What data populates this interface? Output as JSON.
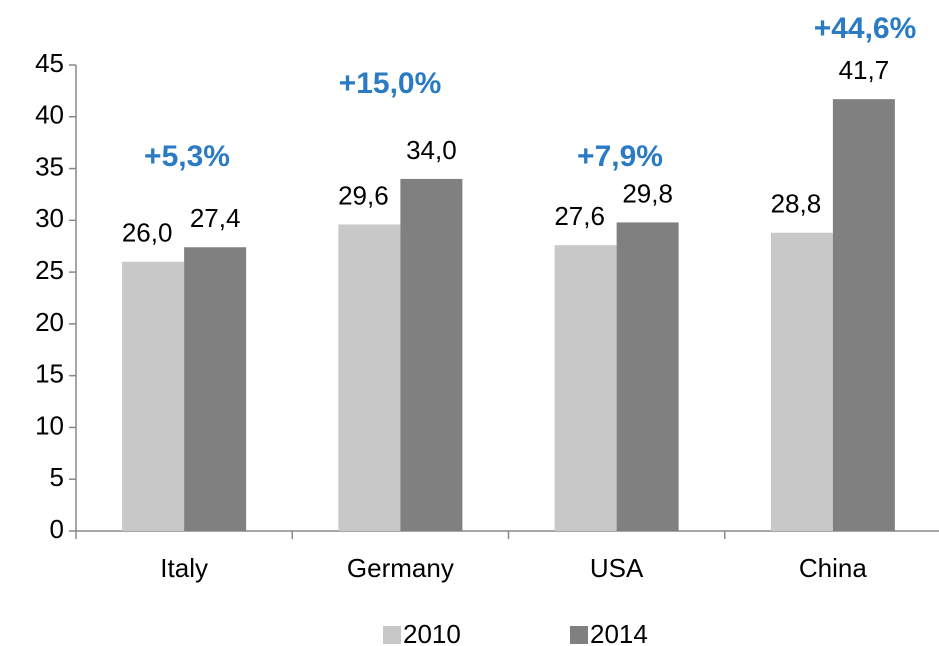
{
  "chart_data": {
    "type": "bar",
    "categories": [
      "Italy",
      "Germany",
      "USA",
      "China"
    ],
    "series": [
      {
        "name": "2010",
        "color": "#c8c8c8",
        "values": [
          26.0,
          29.6,
          27.6,
          28.8
        ],
        "value_labels": [
          "26,0",
          "29,6",
          "27,6",
          "28,8"
        ]
      },
      {
        "name": "2014",
        "color": "#808080",
        "values": [
          27.4,
          34.0,
          29.8,
          41.7
        ],
        "value_labels": [
          "27,4",
          "34,0",
          "29,8",
          "41,7"
        ]
      }
    ],
    "annotations": [
      "+5,3%",
      "+15,0%",
      "+7,9%",
      "+44,6%"
    ],
    "annotation_color": "#2a7bc4",
    "ylim": [
      0,
      45
    ],
    "yticks": [
      0,
      5,
      10,
      15,
      20,
      25,
      30,
      35,
      40,
      45
    ],
    "grid": false,
    "legend": "bottom"
  }
}
